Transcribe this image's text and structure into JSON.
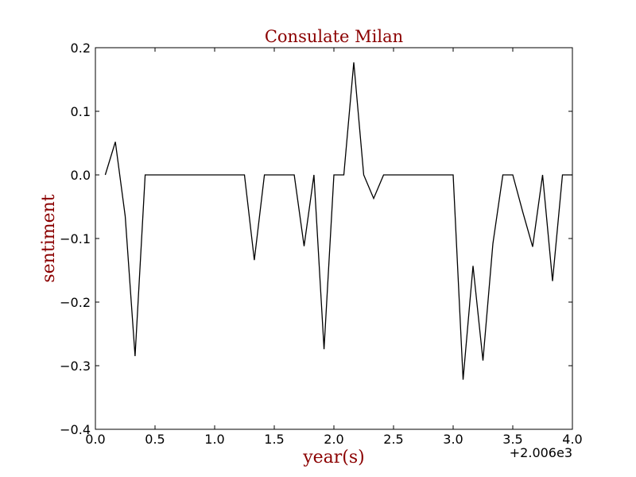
{
  "chart_data": {
    "type": "line",
    "title": "Consulate Milan",
    "xlabel": "year(s)",
    "ylabel": "sentiment",
    "x_offset_label": "+2.006e3",
    "xlim": [
      0.0,
      4.0
    ],
    "ylim": [
      -0.4,
      0.2
    ],
    "xticks": [
      0.0,
      0.5,
      1.0,
      1.5,
      2.0,
      2.5,
      3.0,
      3.5,
      4.0
    ],
    "xtick_labels": [
      "0.0",
      "0.5",
      "1.0",
      "1.5",
      "2.0",
      "2.5",
      "3.0",
      "3.5",
      "4.0"
    ],
    "yticks": [
      -0.4,
      -0.3,
      -0.2,
      -0.1,
      0.0,
      0.1,
      0.2
    ],
    "ytick_labels": [
      "−0.4",
      "−0.3",
      "−0.2",
      "−0.1",
      "0.0",
      "0.1",
      "0.2"
    ],
    "grid": false,
    "colors": {
      "line": "#000000",
      "title": "#8b0000",
      "axis_title": "#8b0000"
    },
    "series": [
      {
        "x": [
          0.083,
          0.167,
          0.25,
          0.333,
          0.417,
          0.5,
          0.583,
          0.667,
          0.75,
          0.833,
          0.917,
          1.0,
          1.083,
          1.167,
          1.25,
          1.333,
          1.417,
          1.5,
          1.583,
          1.667,
          1.75,
          1.833,
          1.917,
          2.0,
          2.083,
          2.167,
          2.25,
          2.333,
          2.417,
          2.5,
          2.583,
          2.667,
          2.75,
          2.833,
          2.917,
          3.0,
          3.083,
          3.167,
          3.25,
          3.333,
          3.417,
          3.5,
          3.583,
          3.667,
          3.75,
          3.833,
          3.917,
          4.0
        ],
        "y": [
          0.0,
          0.052,
          -0.065,
          -0.285,
          0.0,
          0.0,
          0.0,
          0.0,
          0.0,
          0.0,
          0.0,
          0.0,
          0.0,
          0.0,
          0.0,
          -0.134,
          0.0,
          0.0,
          0.0,
          0.0,
          -0.112,
          0.0,
          -0.274,
          0.0,
          0.0,
          0.177,
          0.0,
          -0.037,
          0.0,
          0.0,
          0.0,
          0.0,
          0.0,
          0.0,
          0.0,
          0.0,
          -0.322,
          -0.143,
          -0.292,
          -0.108,
          0.0,
          0.0,
          -0.058,
          -0.113,
          0.0,
          -0.167,
          0.0,
          0.0
        ]
      }
    ]
  }
}
